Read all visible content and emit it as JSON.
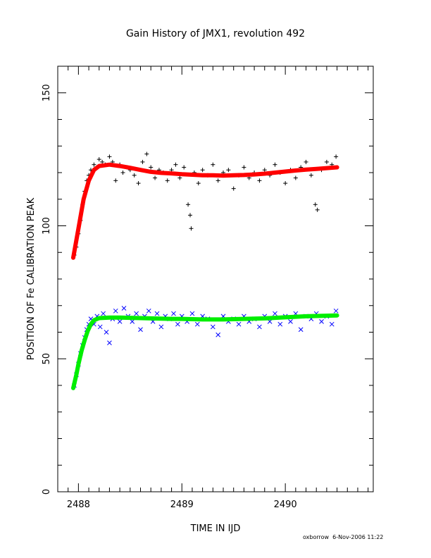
{
  "footer": {
    "user": "oxborrow",
    "timestamp": "6-Nov-2006 11:22"
  },
  "chart_data": {
    "type": "scatter",
    "title": "Gain History of JMX1, revolution 492",
    "xlabel": "TIME IN IJD",
    "ylabel": "POSITION OF Fe CALIBRATION PEAK",
    "xlim": [
      2487.8,
      2490.85
    ],
    "ylim": [
      0,
      160
    ],
    "x_ticks": [
      2488,
      2489,
      2490
    ],
    "y_ticks": [
      0,
      50,
      100,
      150
    ],
    "series": [
      {
        "marker": "+",
        "color": "#000000",
        "points": [
          [
            2487.96,
            89
          ],
          [
            2487.98,
            92
          ],
          [
            2488.0,
            97
          ],
          [
            2488.02,
            102
          ],
          [
            2488.04,
            108
          ],
          [
            2488.06,
            113
          ],
          [
            2488.08,
            117
          ],
          [
            2488.1,
            119
          ],
          [
            2488.12,
            121
          ],
          [
            2488.15,
            123
          ],
          [
            2488.18,
            122
          ],
          [
            2488.2,
            125
          ],
          [
            2488.23,
            124
          ],
          [
            2488.26,
            123
          ],
          [
            2488.3,
            126
          ],
          [
            2488.33,
            124
          ],
          [
            2488.36,
            117
          ],
          [
            2488.4,
            123
          ],
          [
            2488.43,
            120
          ],
          [
            2488.47,
            122
          ],
          [
            2488.5,
            121
          ],
          [
            2488.54,
            119
          ],
          [
            2488.58,
            116
          ],
          [
            2488.62,
            124
          ],
          [
            2488.66,
            127
          ],
          [
            2488.7,
            122
          ],
          [
            2488.74,
            118
          ],
          [
            2488.78,
            121
          ],
          [
            2488.82,
            120
          ],
          [
            2488.86,
            117
          ],
          [
            2488.9,
            121
          ],
          [
            2488.94,
            123
          ],
          [
            2488.98,
            118
          ],
          [
            2489.02,
            122
          ],
          [
            2489.06,
            108
          ],
          [
            2489.08,
            104
          ],
          [
            2489.09,
            99
          ],
          [
            2489.12,
            120
          ],
          [
            2489.16,
            116
          ],
          [
            2489.2,
            121
          ],
          [
            2489.25,
            119
          ],
          [
            2489.3,
            123
          ],
          [
            2489.35,
            117
          ],
          [
            2489.4,
            120
          ],
          [
            2489.45,
            121
          ],
          [
            2489.5,
            114
          ],
          [
            2489.55,
            119
          ],
          [
            2489.6,
            122
          ],
          [
            2489.65,
            118
          ],
          [
            2489.7,
            120
          ],
          [
            2489.75,
            117
          ],
          [
            2489.8,
            121
          ],
          [
            2489.85,
            119
          ],
          [
            2489.9,
            123
          ],
          [
            2489.95,
            120
          ],
          [
            2490.0,
            116
          ],
          [
            2490.05,
            121
          ],
          [
            2490.1,
            118
          ],
          [
            2490.15,
            122
          ],
          [
            2490.2,
            124
          ],
          [
            2490.25,
            119
          ],
          [
            2490.29,
            108
          ],
          [
            2490.31,
            106
          ],
          [
            2490.35,
            121
          ],
          [
            2490.4,
            124
          ],
          [
            2490.45,
            123
          ],
          [
            2490.49,
            126
          ]
        ]
      },
      {
        "marker": "solid-line",
        "color": "#ff0000",
        "points": [
          [
            2487.95,
            88
          ],
          [
            2488.0,
            99
          ],
          [
            2488.05,
            110
          ],
          [
            2488.1,
            117
          ],
          [
            2488.15,
            121
          ],
          [
            2488.2,
            122.5
          ],
          [
            2488.3,
            123
          ],
          [
            2488.4,
            122.5
          ],
          [
            2488.5,
            121.8
          ],
          [
            2488.6,
            121
          ],
          [
            2488.7,
            120.3
          ],
          [
            2488.8,
            119.9
          ],
          [
            2488.9,
            119.7
          ],
          [
            2489.0,
            119.4
          ],
          [
            2489.1,
            119.2
          ],
          [
            2489.2,
            119
          ],
          [
            2489.3,
            119
          ],
          [
            2489.4,
            118.9
          ],
          [
            2489.5,
            119
          ],
          [
            2489.6,
            119.1
          ],
          [
            2489.7,
            119.3
          ],
          [
            2489.8,
            119.6
          ],
          [
            2489.9,
            120
          ],
          [
            2490.0,
            120.4
          ],
          [
            2490.1,
            120.8
          ],
          [
            2490.2,
            121.1
          ],
          [
            2490.3,
            121.4
          ],
          [
            2490.4,
            121.7
          ],
          [
            2490.5,
            122
          ]
        ]
      },
      {
        "marker": "x",
        "color": "#0000ff",
        "points": [
          [
            2487.96,
            40
          ],
          [
            2487.98,
            44
          ],
          [
            2488.0,
            48
          ],
          [
            2488.02,
            52
          ],
          [
            2488.04,
            55
          ],
          [
            2488.06,
            58
          ],
          [
            2488.08,
            61
          ],
          [
            2488.1,
            63
          ],
          [
            2488.12,
            65
          ],
          [
            2488.15,
            63
          ],
          [
            2488.18,
            66
          ],
          [
            2488.21,
            62
          ],
          [
            2488.24,
            67
          ],
          [
            2488.27,
            60
          ],
          [
            2488.3,
            56
          ],
          [
            2488.33,
            65
          ],
          [
            2488.36,
            68
          ],
          [
            2488.4,
            64
          ],
          [
            2488.44,
            69
          ],
          [
            2488.48,
            66
          ],
          [
            2488.52,
            64
          ],
          [
            2488.56,
            67
          ],
          [
            2488.6,
            61
          ],
          [
            2488.64,
            66
          ],
          [
            2488.68,
            68
          ],
          [
            2488.72,
            64
          ],
          [
            2488.76,
            67
          ],
          [
            2488.8,
            62
          ],
          [
            2488.84,
            66
          ],
          [
            2488.88,
            65
          ],
          [
            2488.92,
            67
          ],
          [
            2488.96,
            63
          ],
          [
            2489.0,
            66
          ],
          [
            2489.05,
            64
          ],
          [
            2489.1,
            67
          ],
          [
            2489.15,
            63
          ],
          [
            2489.2,
            66
          ],
          [
            2489.25,
            65
          ],
          [
            2489.3,
            62
          ],
          [
            2489.35,
            59
          ],
          [
            2489.4,
            66
          ],
          [
            2489.45,
            64
          ],
          [
            2489.5,
            65
          ],
          [
            2489.55,
            63
          ],
          [
            2489.6,
            66
          ],
          [
            2489.65,
            64
          ],
          [
            2489.7,
            65
          ],
          [
            2489.75,
            62
          ],
          [
            2489.8,
            66
          ],
          [
            2489.85,
            64
          ],
          [
            2489.9,
            67
          ],
          [
            2489.95,
            63
          ],
          [
            2490.0,
            66
          ],
          [
            2490.05,
            64
          ],
          [
            2490.1,
            67
          ],
          [
            2490.15,
            61
          ],
          [
            2490.2,
            66
          ],
          [
            2490.25,
            65
          ],
          [
            2490.3,
            67
          ],
          [
            2490.35,
            64
          ],
          [
            2490.4,
            66
          ],
          [
            2490.45,
            63
          ],
          [
            2490.49,
            68
          ]
        ]
      },
      {
        "marker": "solid-line",
        "color": "#00ee00",
        "points": [
          [
            2487.95,
            39
          ],
          [
            2487.98,
            44
          ],
          [
            2488.0,
            48
          ],
          [
            2488.03,
            53
          ],
          [
            2488.06,
            57
          ],
          [
            2488.09,
            60.5
          ],
          [
            2488.12,
            63
          ],
          [
            2488.15,
            64.5
          ],
          [
            2488.2,
            65.3
          ],
          [
            2488.3,
            65.5
          ],
          [
            2488.4,
            65.5
          ],
          [
            2488.5,
            65.4
          ],
          [
            2488.6,
            65.3
          ],
          [
            2488.7,
            65.2
          ],
          [
            2488.8,
            65.1
          ],
          [
            2488.9,
            65
          ],
          [
            2489.0,
            65
          ],
          [
            2489.1,
            64.9
          ],
          [
            2489.2,
            64.8
          ],
          [
            2489.3,
            64.8
          ],
          [
            2489.4,
            64.8
          ],
          [
            2489.5,
            64.9
          ],
          [
            2489.6,
            65
          ],
          [
            2489.7,
            65.1
          ],
          [
            2489.8,
            65.2
          ],
          [
            2489.9,
            65.4
          ],
          [
            2490.0,
            65.6
          ],
          [
            2490.1,
            65.8
          ],
          [
            2490.2,
            66
          ],
          [
            2490.3,
            66.1
          ],
          [
            2490.4,
            66.2
          ],
          [
            2490.5,
            66.3
          ]
        ]
      }
    ]
  }
}
